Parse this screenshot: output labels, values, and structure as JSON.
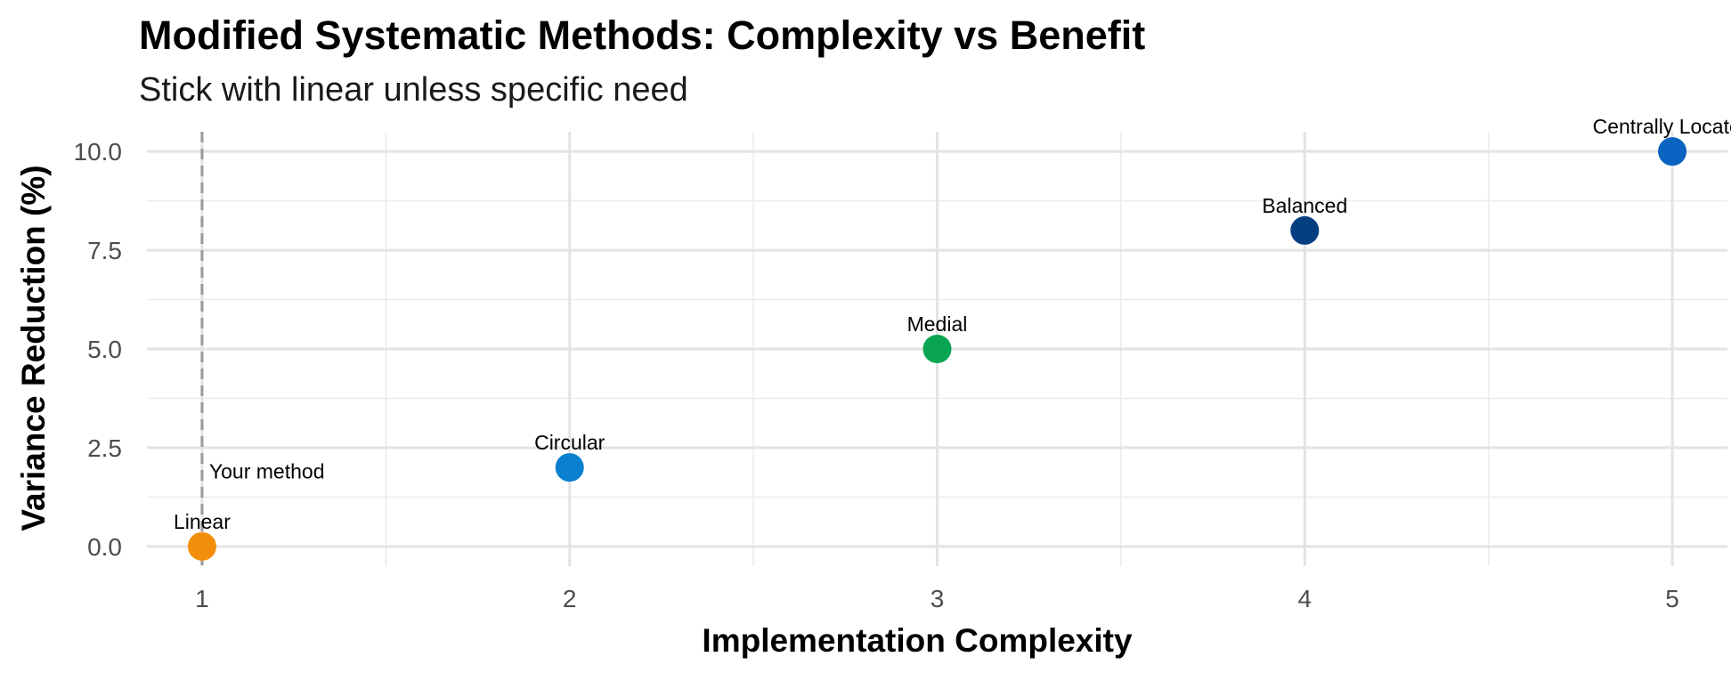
{
  "chart_data": {
    "type": "scatter",
    "title": "Modified Systematic Methods: Complexity vs Benefit",
    "subtitle": "Stick with linear unless specific need",
    "xlabel": "Implementation Complexity",
    "ylabel": "Variance Reduction (%)",
    "xlim": [
      0.85,
      5.15
    ],
    "ylim": [
      -0.5,
      10.5
    ],
    "x_ticks": [
      "1",
      "2",
      "3",
      "4",
      "5"
    ],
    "y_ticks": [
      "0.0",
      "2.5",
      "5.0",
      "7.5",
      "10.0"
    ],
    "grid": true,
    "points": [
      {
        "label": "Linear",
        "x": 1,
        "y": 0,
        "color": "#F28E0A"
      },
      {
        "label": "Circular",
        "x": 2,
        "y": 2,
        "color": "#0A7FCF"
      },
      {
        "label": "Medial",
        "x": 3,
        "y": 5,
        "color": "#0AA552"
      },
      {
        "label": "Balanced",
        "x": 4,
        "y": 8,
        "color": "#053F80"
      },
      {
        "label": "Centrally Located",
        "x": 5,
        "y": 10,
        "color": "#0B63C2"
      }
    ],
    "reference_line": {
      "x": 1,
      "label": "Your method",
      "style": "dashed",
      "color": "#999999"
    }
  }
}
